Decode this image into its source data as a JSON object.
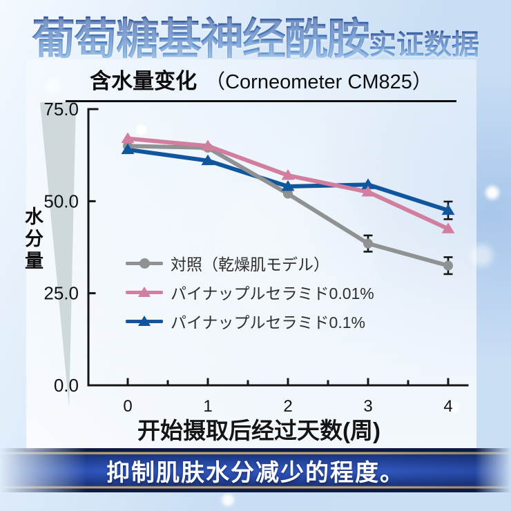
{
  "header": {
    "title_main": "葡萄糖基神经酰胺",
    "title_suffix": "实证数据"
  },
  "subtitle": {
    "bold": "含水量变化",
    "paren": "（Corneometer CM825）"
  },
  "chart_data": {
    "type": "line",
    "title": "含水量变化（Corneometer CM825）",
    "xlabel": "开始摄取后经过天数(周)",
    "ylabel": "水分量",
    "x": [
      0,
      1,
      2,
      3,
      4
    ],
    "x_tick_labels": [
      "0",
      "1",
      "2",
      "3",
      "4"
    ],
    "y_ticks": [
      75.0,
      50.0,
      25.0,
      0.0
    ],
    "y_tick_labels": [
      "75.0",
      "50.0",
      "25.0",
      "0.0"
    ],
    "ylim": [
      0,
      75
    ],
    "grid": false,
    "legend_position": "inside-left-middle",
    "series": [
      {
        "name": "対照（乾燥肌モデル）",
        "color": "#8f9193",
        "marker": "circle",
        "values": [
          65,
          64.5,
          52,
          38.5,
          32.5
        ],
        "error": [
          0,
          0,
          0,
          2.2,
          2.3
        ]
      },
      {
        "name": "パイナップルセラミド0.01%",
        "color": "#d27e9e",
        "marker": "triangle",
        "values": [
          67,
          65,
          57,
          52.5,
          42.5
        ],
        "error": [
          0,
          0,
          0,
          0,
          0
        ]
      },
      {
        "name": "パイナップルセラミド0.1%",
        "color": "#10569f",
        "marker": "triangle",
        "values": [
          64,
          61,
          54,
          54.5,
          47.5
        ],
        "error": [
          0,
          0,
          0,
          0,
          2.4
        ]
      }
    ]
  },
  "footer": {
    "banner_text": "抑制肌肤水分减少的程度。"
  },
  "colors": {
    "title_gradient_top": "#123a8c",
    "title_gradient_bottom": "#6aa2dc",
    "axis": "#151515",
    "control_gray": "#8f9193",
    "ceramide_001_pink": "#d27e9e",
    "ceramide_01_blue": "#10569f",
    "banner_blue": "#2f55bd",
    "banner_dark": "#0d1a45",
    "banner_gold": "#c0a877",
    "wedge_gray": "#c6cfd1"
  }
}
